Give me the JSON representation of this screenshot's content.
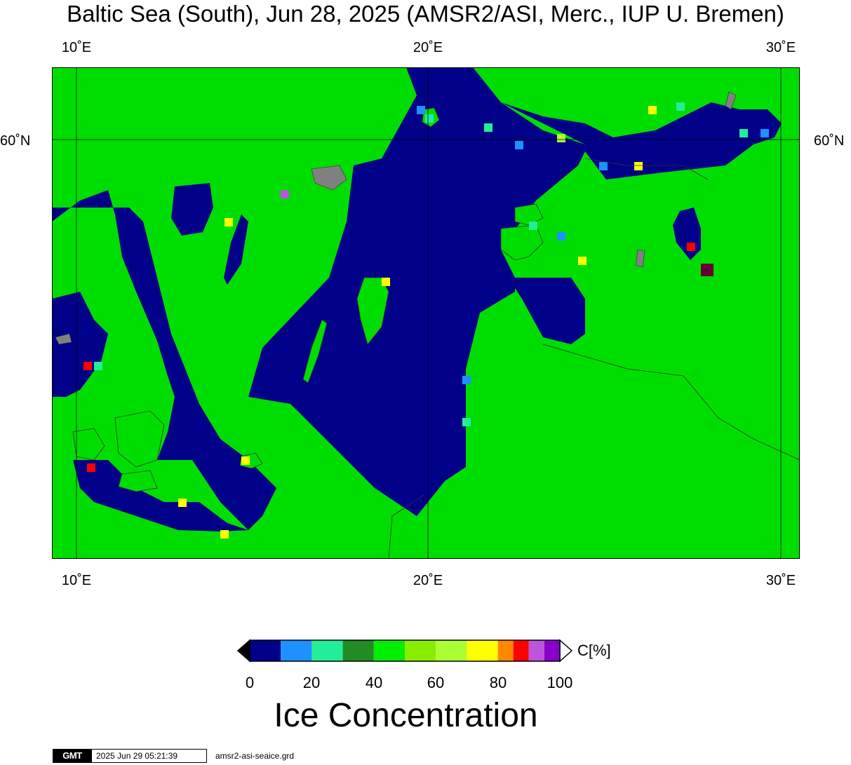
{
  "title": "Baltic Sea (South), Jun 28, 2025 (AMSR2/ASI, Merc., IUP U. Bremen)",
  "map": {
    "lon_range": [
      9.3,
      30.55
    ],
    "lat_range": [
      53.7,
      61.2
    ],
    "lon_ticks": [
      {
        "value": 10,
        "label": "10˚E"
      },
      {
        "value": 20,
        "label": "20˚E"
      },
      {
        "value": 30,
        "label": "30˚E"
      }
    ],
    "lat_ticks": [
      {
        "value": 60,
        "label": "60˚N"
      }
    ],
    "colors": {
      "land": "#00dd00",
      "open_water": "#000088",
      "no_data": "#808080",
      "border_line": "#333333"
    }
  },
  "colorbar": {
    "unit_label": "C[%]",
    "title": "Ice Concentration",
    "tick_labels": [
      "0",
      "20",
      "40",
      "60",
      "80",
      "100"
    ],
    "range": [
      0,
      100
    ],
    "bins": [
      {
        "from": 0,
        "to": 10,
        "color": "#000088"
      },
      {
        "from": 10,
        "to": 20,
        "color": "#1e90ff"
      },
      {
        "from": 20,
        "to": 30,
        "color": "#22ee99"
      },
      {
        "from": 30,
        "to": 40,
        "color": "#228b22"
      },
      {
        "from": 40,
        "to": 50,
        "color": "#00ee00"
      },
      {
        "from": 50,
        "to": 60,
        "color": "#88ee00"
      },
      {
        "from": 60,
        "to": 70,
        "color": "#aaff33"
      },
      {
        "from": 70,
        "to": 80,
        "color": "#ffff00"
      },
      {
        "from": 80,
        "to": 85,
        "color": "#ff8800"
      },
      {
        "from": 85,
        "to": 90,
        "color": "#ff0000"
      },
      {
        "from": 90,
        "to": 95,
        "color": "#bb55dd"
      },
      {
        "from": 95,
        "to": 100,
        "color": "#8800cc"
      }
    ],
    "under_color": "#000000",
    "over_color": "#ffffff"
  },
  "footer": {
    "logo": "GMT",
    "timestamp": "2025 Jun 29 05:21:39",
    "filename": "amsr2-asi-seaice.grd"
  }
}
